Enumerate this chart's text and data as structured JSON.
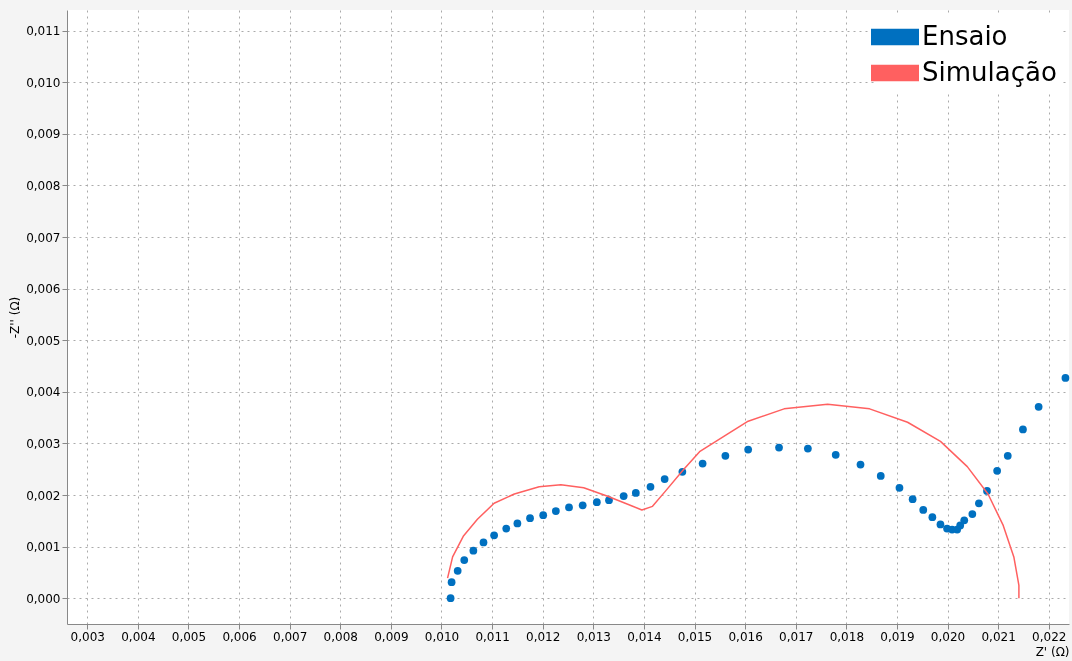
{
  "chart_data": {
    "type": "scatter",
    "xlabel": "Z' (Ω)",
    "ylabel": "-Z'' (Ω)",
    "xlim": [
      0.0026,
      0.0224
    ],
    "ylim": [
      -0.0005,
      0.0114
    ],
    "xticks": [
      {
        "value": 0.003,
        "label": "0,003"
      },
      {
        "value": 0.004,
        "label": "0,004"
      },
      {
        "value": 0.005,
        "label": "0,005"
      },
      {
        "value": 0.006,
        "label": "0,006"
      },
      {
        "value": 0.007,
        "label": "0,007"
      },
      {
        "value": 0.008,
        "label": "0,008"
      },
      {
        "value": 0.009,
        "label": "0,009"
      },
      {
        "value": 0.01,
        "label": "0,010"
      },
      {
        "value": 0.011,
        "label": "0,011"
      },
      {
        "value": 0.012,
        "label": "0,012"
      },
      {
        "value": 0.013,
        "label": "0,013"
      },
      {
        "value": 0.014,
        "label": "0,014"
      },
      {
        "value": 0.015,
        "label": "0,015"
      },
      {
        "value": 0.016,
        "label": "0,016"
      },
      {
        "value": 0.017,
        "label": "0,017"
      },
      {
        "value": 0.018,
        "label": "0,018"
      },
      {
        "value": 0.019,
        "label": "0,019"
      },
      {
        "value": 0.02,
        "label": "0,020"
      },
      {
        "value": 0.021,
        "label": "0,021"
      },
      {
        "value": 0.022,
        "label": "0,022"
      }
    ],
    "yticks": [
      {
        "value": 0,
        "label": "0,000"
      },
      {
        "value": 0.001,
        "label": "0,001"
      },
      {
        "value": 0.002,
        "label": "0,002"
      },
      {
        "value": 0.003,
        "label": "0,003"
      },
      {
        "value": 0.004,
        "label": "0,004"
      },
      {
        "value": 0.005,
        "label": "0,005"
      },
      {
        "value": 0.006,
        "label": "0,006"
      },
      {
        "value": 0.007,
        "label": "0,007"
      },
      {
        "value": 0.008,
        "label": "0,008"
      },
      {
        "value": 0.009,
        "label": "0,009"
      },
      {
        "value": 0.01,
        "label": "0,010"
      },
      {
        "value": 0.011,
        "label": "0,011"
      }
    ],
    "grid": true,
    "legend": "top right",
    "series": [
      {
        "name": "Ensaio",
        "marker": "circle",
        "color": "#0070c0",
        "x": [
          0.01018,
          0.0102,
          0.01032,
          0.01045,
          0.01063,
          0.01083,
          0.01104,
          0.01128,
          0.0115,
          0.01175,
          0.01201,
          0.01226,
          0.01252,
          0.01279,
          0.01307,
          0.01331,
          0.0136,
          0.01384,
          0.01413,
          0.01441,
          0.01476,
          0.01516,
          0.01561,
          0.01606,
          0.01667,
          0.01724,
          0.01779,
          0.01828,
          0.01868,
          0.01905,
          0.01931,
          0.01952,
          0.0197,
          0.01986,
          0.01999,
          0.02009,
          0.02019,
          0.02025,
          0.02033,
          0.02049,
          0.02062,
          0.02078,
          0.02098,
          0.02119,
          0.02149,
          0.0218,
          0.02233
        ],
        "values": [
          0.0,
          0.00031,
          0.00053,
          0.00074,
          0.00092,
          0.00108,
          0.00122,
          0.00135,
          0.00145,
          0.00155,
          0.00161,
          0.00169,
          0.00176,
          0.0018,
          0.00186,
          0.0019,
          0.00198,
          0.00204,
          0.00216,
          0.00231,
          0.00245,
          0.00261,
          0.00276,
          0.00288,
          0.00292,
          0.0029,
          0.00278,
          0.00259,
          0.00237,
          0.00214,
          0.00192,
          0.00171,
          0.00157,
          0.00143,
          0.00135,
          0.00133,
          0.00133,
          0.00141,
          0.00151,
          0.00163,
          0.00184,
          0.00208,
          0.00247,
          0.00276,
          0.00327,
          0.00371,
          0.00427
        ]
      },
      {
        "name": "Simulação",
        "type": "line",
        "color": "#ff6060",
        "x": [
          0.01012,
          0.01022,
          0.01043,
          0.01071,
          0.01104,
          0.01144,
          0.01193,
          0.01236,
          0.01281,
          0.01327,
          0.01368,
          0.01396,
          0.01417,
          0.01443,
          0.01478,
          0.0151,
          0.01565,
          0.01606,
          0.01677,
          0.01763,
          0.01846,
          0.01921,
          0.01986,
          0.02039,
          0.0208,
          0.0211,
          0.02131,
          0.02141,
          0.02141
        ],
        "values": [
          0.00039,
          0.0008,
          0.0012,
          0.00153,
          0.00184,
          0.00202,
          0.00216,
          0.0022,
          0.00214,
          0.00198,
          0.00182,
          0.00171,
          0.00178,
          0.00208,
          0.00249,
          0.00284,
          0.00318,
          0.00343,
          0.00367,
          0.00376,
          0.00367,
          0.00341,
          0.00304,
          0.00255,
          0.00202,
          0.00141,
          0.0008,
          0.00025,
          0.0
        ]
      }
    ]
  }
}
